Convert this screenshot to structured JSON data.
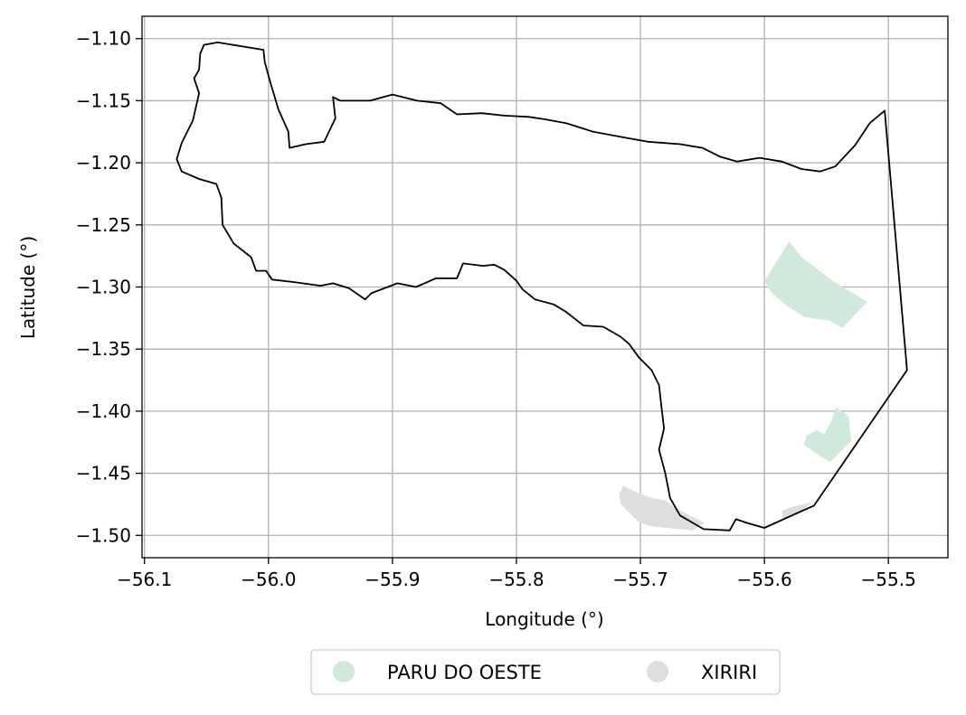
{
  "chart_data": {
    "type": "map",
    "xlabel": "Longitude (°)",
    "ylabel": "Latitude (°)",
    "xlim": [
      -56.102,
      -55.452
    ],
    "ylim": [
      -1.518,
      -1.082
    ],
    "x_ticks": [
      {
        "value": -56.1,
        "label": "−56.1"
      },
      {
        "value": -56.0,
        "label": "−56.0"
      },
      {
        "value": -55.9,
        "label": "−55.9"
      },
      {
        "value": -55.8,
        "label": "−55.8"
      },
      {
        "value": -55.7,
        "label": "−55.7"
      },
      {
        "value": -55.6,
        "label": "−55.6"
      },
      {
        "value": -55.5,
        "label": "−55.5"
      }
    ],
    "y_ticks": [
      {
        "value": -1.1,
        "label": "−1.10"
      },
      {
        "value": -1.15,
        "label": "−1.15"
      },
      {
        "value": -1.2,
        "label": "−1.20"
      },
      {
        "value": -1.25,
        "label": "−1.25"
      },
      {
        "value": -1.3,
        "label": "−1.30"
      },
      {
        "value": -1.35,
        "label": "−1.35"
      },
      {
        "value": -1.4,
        "label": "−1.40"
      },
      {
        "value": -1.45,
        "label": "−1.45"
      },
      {
        "value": -1.5,
        "label": "−1.50"
      }
    ],
    "grid": true,
    "legend_placement": "below",
    "legend": [
      {
        "label": "PARU DO OESTE",
        "color": "#cfeadb"
      },
      {
        "label": "XIRIRI",
        "color": "#dedede"
      }
    ],
    "outline": {
      "color": "#000000",
      "coords": [
        [
          -56.041,
          -1.103
        ],
        [
          -56.052,
          -1.105
        ],
        [
          -56.055,
          -1.112
        ],
        [
          -56.056,
          -1.125
        ],
        [
          -56.06,
          -1.132
        ],
        [
          -56.056,
          -1.144
        ],
        [
          -56.061,
          -1.166
        ],
        [
          -56.07,
          -1.184
        ],
        [
          -56.074,
          -1.197
        ],
        [
          -56.07,
          -1.207
        ],
        [
          -56.056,
          -1.213
        ],
        [
          -56.042,
          -1.217
        ],
        [
          -56.038,
          -1.228
        ],
        [
          -56.037,
          -1.25
        ],
        [
          -56.028,
          -1.265
        ],
        [
          -56.014,
          -1.276
        ],
        [
          -56.01,
          -1.287
        ],
        [
          -56.002,
          -1.287
        ],
        [
          -55.997,
          -1.294
        ],
        [
          -55.98,
          -1.296
        ],
        [
          -55.958,
          -1.299
        ],
        [
          -55.948,
          -1.297
        ],
        [
          -55.935,
          -1.301
        ],
        [
          -55.922,
          -1.31
        ],
        [
          -55.917,
          -1.305
        ],
        [
          -55.896,
          -1.297
        ],
        [
          -55.881,
          -1.3
        ],
        [
          -55.865,
          -1.293
        ],
        [
          -55.848,
          -1.293
        ],
        [
          -55.843,
          -1.281
        ],
        [
          -55.827,
          -1.283
        ],
        [
          -55.818,
          -1.282
        ],
        [
          -55.81,
          -1.286
        ],
        [
          -55.8,
          -1.295
        ],
        [
          -55.795,
          -1.302
        ],
        [
          -55.785,
          -1.31
        ],
        [
          -55.77,
          -1.314
        ],
        [
          -55.76,
          -1.32
        ],
        [
          -55.746,
          -1.331
        ],
        [
          -55.73,
          -1.332
        ],
        [
          -55.716,
          -1.34
        ],
        [
          -55.709,
          -1.346
        ],
        [
          -55.701,
          -1.357
        ],
        [
          -55.691,
          -1.367
        ],
        [
          -55.685,
          -1.379
        ],
        [
          -55.683,
          -1.397
        ],
        [
          -55.681,
          -1.414
        ],
        [
          -55.685,
          -1.431
        ],
        [
          -55.68,
          -1.45
        ],
        [
          -55.676,
          -1.47
        ],
        [
          -55.668,
          -1.484
        ],
        [
          -55.649,
          -1.495
        ],
        [
          -55.628,
          -1.496
        ],
        [
          -55.623,
          -1.487
        ],
        [
          -55.614,
          -1.49
        ],
        [
          -55.6,
          -1.494
        ],
        [
          -55.56,
          -1.476
        ],
        [
          -55.485,
          -1.367
        ],
        [
          -55.503,
          -1.158
        ],
        [
          -55.515,
          -1.168
        ],
        [
          -55.527,
          -1.186
        ],
        [
          -55.543,
          -1.203
        ],
        [
          -55.555,
          -1.207
        ],
        [
          -55.57,
          -1.205
        ],
        [
          -55.586,
          -1.199
        ],
        [
          -55.604,
          -1.196
        ],
        [
          -55.622,
          -1.199
        ],
        [
          -55.636,
          -1.195
        ],
        [
          -55.65,
          -1.188
        ],
        [
          -55.668,
          -1.185
        ],
        [
          -55.694,
          -1.183
        ],
        [
          -55.711,
          -1.18
        ],
        [
          -55.738,
          -1.175
        ],
        [
          -55.76,
          -1.168
        ],
        [
          -55.777,
          -1.165
        ],
        [
          -55.79,
          -1.163
        ],
        [
          -55.81,
          -1.162
        ],
        [
          -55.828,
          -1.16
        ],
        [
          -55.848,
          -1.161
        ],
        [
          -55.861,
          -1.152
        ],
        [
          -55.88,
          -1.15
        ],
        [
          -55.9,
          -1.145
        ],
        [
          -55.918,
          -1.15
        ],
        [
          -55.942,
          -1.15
        ],
        [
          -55.948,
          -1.147
        ],
        [
          -55.946,
          -1.164
        ],
        [
          -55.955,
          -1.183
        ],
        [
          -55.97,
          -1.185
        ],
        [
          -55.983,
          -1.188
        ],
        [
          -55.984,
          -1.175
        ],
        [
          -55.992,
          -1.157
        ],
        [
          -55.998,
          -1.137
        ],
        [
          -56.003,
          -1.119
        ],
        [
          -56.004,
          -1.109
        ],
        [
          -56.041,
          -1.103
        ]
      ]
    },
    "areas": [
      {
        "name": "PARU DO OESTE",
        "color": "#cfeadb",
        "coords": [
          [
            -55.6,
            -1.295
          ],
          [
            -55.593,
            -1.284
          ],
          [
            -55.58,
            -1.263
          ],
          [
            -55.57,
            -1.276
          ],
          [
            -55.545,
            -1.295
          ],
          [
            -55.517,
            -1.312
          ],
          [
            -55.537,
            -1.333
          ],
          [
            -55.548,
            -1.327
          ],
          [
            -55.568,
            -1.324
          ],
          [
            -55.582,
            -1.315
          ],
          [
            -55.594,
            -1.305
          ]
        ]
      },
      {
        "name": "PARU DO OESTE",
        "color": "#cfeadb",
        "coords": [
          [
            -55.542,
            -1.397
          ],
          [
            -55.532,
            -1.404
          ],
          [
            -55.53,
            -1.424
          ],
          [
            -55.538,
            -1.432
          ],
          [
            -55.547,
            -1.441
          ],
          [
            -55.56,
            -1.433
          ],
          [
            -55.568,
            -1.427
          ],
          [
            -55.566,
            -1.42
          ],
          [
            -55.558,
            -1.415
          ],
          [
            -55.552,
            -1.419
          ],
          [
            -55.546,
            -1.408
          ]
        ]
      },
      {
        "name": "XIRIRI",
        "color": "#dedede",
        "coords": [
          [
            -55.714,
            -1.46
          ],
          [
            -55.717,
            -1.467
          ],
          [
            -55.716,
            -1.475
          ],
          [
            -55.708,
            -1.483
          ],
          [
            -55.7,
            -1.49
          ],
          [
            -55.69,
            -1.493
          ],
          [
            -55.679,
            -1.494
          ],
          [
            -55.658,
            -1.496
          ],
          [
            -55.648,
            -1.49
          ],
          [
            -55.66,
            -1.484
          ],
          [
            -55.672,
            -1.478
          ],
          [
            -55.68,
            -1.472
          ],
          [
            -55.694,
            -1.469
          ],
          [
            -55.704,
            -1.465
          ]
        ]
      },
      {
        "name": "XIRIRI",
        "color": "#dedede",
        "coords": [
          [
            -55.586,
            -1.48
          ],
          [
            -55.573,
            -1.476
          ],
          [
            -55.561,
            -1.473
          ],
          [
            -55.572,
            -1.482
          ],
          [
            -55.585,
            -1.488
          ]
        ]
      }
    ]
  }
}
